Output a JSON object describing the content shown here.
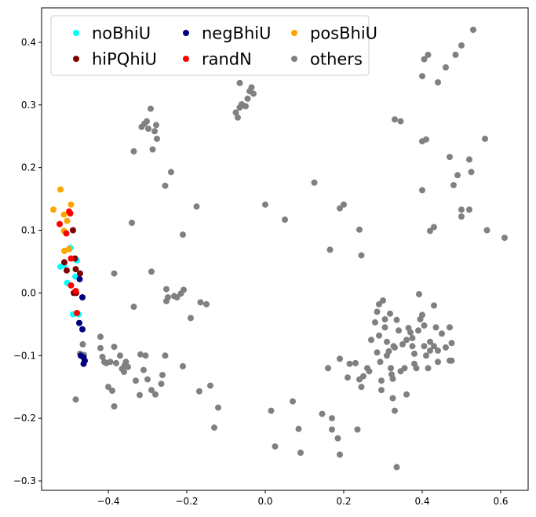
{
  "chart_data": {
    "type": "scatter",
    "title": "",
    "xlabel": "",
    "ylabel": "",
    "xlim": [
      -0.57,
      0.67
    ],
    "ylim": [
      -0.315,
      0.455
    ],
    "xticks": [
      -0.4,
      -0.2,
      0.0,
      0.2,
      0.4,
      0.6
    ],
    "yticks": [
      -0.3,
      -0.2,
      -0.1,
      0.0,
      0.1,
      0.2,
      0.3,
      0.4
    ],
    "xtick_labels": [
      "−0.4",
      "−0.2",
      "0.0",
      "0.2",
      "0.4",
      "0.6"
    ],
    "ytick_labels": [
      "−0.3",
      "−0.2",
      "−0.1",
      "0.0",
      "0.1",
      "0.2",
      "0.3",
      "0.4"
    ],
    "grid": false,
    "legend": {
      "position": "top-left",
      "columns": 3
    },
    "series": [
      {
        "name": "noBhiU",
        "color": "#00ffff",
        "points": [
          [
            -0.497,
            0.072
          ],
          [
            -0.513,
            0.045
          ],
          [
            -0.505,
            0.016
          ],
          [
            -0.484,
            0.026
          ],
          [
            -0.476,
            -0.034
          ],
          [
            -0.49,
            -0.034
          ],
          [
            -0.48,
            0.052
          ],
          [
            -0.522,
            0.042
          ]
        ]
      },
      {
        "name": "negBhiU",
        "color": "#000080",
        "points": [
          [
            -0.473,
            0.022
          ],
          [
            -0.466,
            -0.007
          ],
          [
            -0.474,
            -0.048
          ],
          [
            -0.466,
            -0.058
          ],
          [
            -0.47,
            -0.1
          ],
          [
            -0.463,
            -0.113
          ],
          [
            -0.46,
            -0.108
          ],
          [
            -0.463,
            -0.103
          ]
        ]
      },
      {
        "name": "posBhiU",
        "color": "#ffa500",
        "points": [
          [
            -0.522,
            0.165
          ],
          [
            -0.54,
            0.133
          ],
          [
            -0.513,
            0.125
          ],
          [
            -0.495,
            0.141
          ],
          [
            -0.505,
            0.115
          ],
          [
            -0.513,
            0.099
          ],
          [
            -0.512,
            0.067
          ],
          [
            -0.5,
            0.07
          ]
        ]
      },
      {
        "name": "hiPQhiU",
        "color": "#800000",
        "points": [
          [
            -0.49,
            0.1
          ],
          [
            -0.512,
            0.049
          ],
          [
            -0.485,
            0.055
          ],
          [
            -0.506,
            0.036
          ],
          [
            -0.483,
            0.038
          ],
          [
            -0.472,
            0.031
          ],
          [
            -0.482,
            0.0
          ],
          [
            -0.488,
            0.0
          ]
        ]
      },
      {
        "name": "randN",
        "color": "#ff0000",
        "points": [
          [
            -0.5,
            0.13
          ],
          [
            -0.497,
            0.127
          ],
          [
            -0.524,
            0.11
          ],
          [
            -0.507,
            0.095
          ],
          [
            -0.495,
            0.055
          ],
          [
            -0.495,
            0.012
          ],
          [
            -0.483,
            0.003
          ],
          [
            -0.48,
            -0.032
          ]
        ]
      },
      {
        "name": "others",
        "color": "#808080",
        "points": [
          [
            -0.483,
            -0.17
          ],
          [
            -0.472,
            -0.097
          ],
          [
            -0.462,
            -0.099
          ],
          [
            -0.465,
            -0.082
          ],
          [
            -0.42,
            -0.07
          ],
          [
            -0.42,
            -0.088
          ],
          [
            -0.415,
            -0.102
          ],
          [
            -0.41,
            -0.11
          ],
          [
            -0.405,
            -0.112
          ],
          [
            -0.395,
            -0.11
          ],
          [
            -0.385,
            -0.086
          ],
          [
            -0.38,
            -0.112
          ],
          [
            -0.37,
            -0.1
          ],
          [
            -0.365,
            -0.121
          ],
          [
            -0.36,
            -0.126
          ],
          [
            -0.358,
            -0.115
          ],
          [
            -0.355,
            -0.11
          ],
          [
            -0.35,
            -0.118
          ],
          [
            -0.33,
            -0.14
          ],
          [
            -0.318,
            -0.098
          ],
          [
            -0.32,
            -0.163
          ],
          [
            -0.31,
            -0.123
          ],
          [
            -0.305,
            -0.1
          ],
          [
            -0.3,
            -0.138
          ],
          [
            -0.29,
            -0.155
          ],
          [
            -0.28,
            -0.162
          ],
          [
            -0.265,
            -0.145
          ],
          [
            -0.262,
            -0.131
          ],
          [
            -0.255,
            -0.1
          ],
          [
            -0.21,
            -0.117
          ],
          [
            -0.4,
            -0.15
          ],
          [
            -0.39,
            -0.156
          ],
          [
            -0.385,
            -0.181
          ],
          [
            -0.385,
            0.031
          ],
          [
            -0.34,
            0.112
          ],
          [
            -0.335,
            -0.022
          ],
          [
            -0.335,
            0.226
          ],
          [
            -0.315,
            0.265
          ],
          [
            -0.308,
            0.27
          ],
          [
            -0.302,
            0.274
          ],
          [
            -0.298,
            0.262
          ],
          [
            -0.292,
            0.294
          ],
          [
            -0.29,
            0.034
          ],
          [
            -0.287,
            0.229
          ],
          [
            -0.282,
            0.258
          ],
          [
            -0.278,
            0.268
          ],
          [
            -0.276,
            0.246
          ],
          [
            -0.255,
            0.171
          ],
          [
            -0.252,
            -0.013
          ],
          [
            -0.248,
            -0.007
          ],
          [
            -0.252,
            0.006
          ],
          [
            -0.24,
            0.193
          ],
          [
            -0.232,
            -0.005
          ],
          [
            -0.225,
            -0.007
          ],
          [
            -0.215,
            -0.001
          ],
          [
            -0.208,
            0.005
          ],
          [
            -0.21,
            0.093
          ],
          [
            -0.19,
            -0.04
          ],
          [
            -0.175,
            0.138
          ],
          [
            -0.168,
            -0.157
          ],
          [
            -0.165,
            -0.015
          ],
          [
            -0.15,
            -0.018
          ],
          [
            -0.14,
            -0.148
          ],
          [
            -0.13,
            -0.215
          ],
          [
            -0.12,
            -0.183
          ],
          [
            -0.075,
            0.288
          ],
          [
            -0.065,
            0.296
          ],
          [
            -0.06,
            0.3
          ],
          [
            -0.06,
            0.301
          ],
          [
            -0.07,
            0.28
          ],
          [
            -0.065,
            0.335
          ],
          [
            -0.05,
            0.298
          ],
          [
            -0.045,
            0.31
          ],
          [
            -0.04,
            0.322
          ],
          [
            -0.035,
            0.328
          ],
          [
            -0.03,
            0.318
          ],
          [
            0.0,
            0.141
          ],
          [
            0.05,
            0.117
          ],
          [
            0.015,
            -0.188
          ],
          [
            0.025,
            -0.245
          ],
          [
            0.07,
            -0.173
          ],
          [
            0.085,
            -0.217
          ],
          [
            0.09,
            -0.255
          ],
          [
            0.125,
            0.176
          ],
          [
            0.145,
            -0.193
          ],
          [
            0.165,
            0.069
          ],
          [
            0.17,
            -0.2
          ],
          [
            0.17,
            -0.218
          ],
          [
            0.185,
            -0.232
          ],
          [
            0.19,
            0.135
          ],
          [
            0.2,
            0.141
          ],
          [
            0.19,
            -0.258
          ],
          [
            0.16,
            -0.12
          ],
          [
            0.19,
            -0.105
          ],
          [
            0.21,
            -0.135
          ],
          [
            0.215,
            -0.113
          ],
          [
            0.23,
            -0.112
          ],
          [
            0.235,
            -0.218
          ],
          [
            0.24,
            0.101
          ],
          [
            0.245,
            0.06
          ],
          [
            0.245,
            -0.15
          ],
          [
            0.24,
            -0.138
          ],
          [
            0.25,
            -0.133
          ],
          [
            0.26,
            -0.12
          ],
          [
            0.265,
            -0.125
          ],
          [
            0.27,
            -0.075
          ],
          [
            0.28,
            -0.047
          ],
          [
            0.285,
            -0.03
          ],
          [
            0.29,
            -0.018
          ],
          [
            0.29,
            -0.068
          ],
          [
            0.285,
            -0.095
          ],
          [
            0.293,
            -0.11
          ],
          [
            0.296,
            -0.14
          ],
          [
            0.296,
            -0.155
          ],
          [
            0.3,
            -0.012
          ],
          [
            0.305,
            -0.042
          ],
          [
            0.305,
            -0.055
          ],
          [
            0.31,
            -0.078
          ],
          [
            0.31,
            -0.1
          ],
          [
            0.315,
            -0.093
          ],
          [
            0.318,
            -0.033
          ],
          [
            0.32,
            -0.12
          ],
          [
            0.322,
            -0.13
          ],
          [
            0.325,
            -0.137
          ],
          [
            0.327,
            -0.085
          ],
          [
            0.33,
            -0.087
          ],
          [
            0.335,
            -0.043
          ],
          [
            0.34,
            -0.06
          ],
          [
            0.345,
            -0.125
          ],
          [
            0.35,
            -0.082
          ],
          [
            0.355,
            -0.12
          ],
          [
            0.36,
            -0.075
          ],
          [
            0.365,
            -0.056
          ],
          [
            0.37,
            -0.063
          ],
          [
            0.375,
            -0.072
          ],
          [
            0.375,
            -0.085
          ],
          [
            0.38,
            -0.097
          ],
          [
            0.38,
            -0.113
          ],
          [
            0.385,
            -0.12
          ],
          [
            0.39,
            -0.06
          ],
          [
            0.395,
            -0.042
          ],
          [
            0.392,
            -0.002
          ],
          [
            0.4,
            -0.035
          ],
          [
            0.405,
            -0.052
          ],
          [
            0.405,
            -0.085
          ],
          [
            0.41,
            -0.1
          ],
          [
            0.415,
            -0.12
          ],
          [
            0.42,
            -0.078
          ],
          [
            0.42,
            -0.092
          ],
          [
            0.43,
            -0.085
          ],
          [
            0.43,
            -0.02
          ],
          [
            0.435,
            -0.055
          ],
          [
            0.44,
            -0.092
          ],
          [
            0.44,
            -0.11
          ],
          [
            0.45,
            -0.065
          ],
          [
            0.46,
            -0.087
          ],
          [
            0.47,
            -0.108
          ],
          [
            0.475,
            -0.108
          ],
          [
            0.475,
            -0.08
          ],
          [
            0.47,
            -0.055
          ],
          [
            0.33,
            0.277
          ],
          [
            0.345,
            0.274
          ],
          [
            0.325,
            -0.168
          ],
          [
            0.33,
            -0.188
          ],
          [
            0.335,
            -0.278
          ],
          [
            0.36,
            -0.162
          ],
          [
            0.4,
            0.242
          ],
          [
            0.41,
            0.245
          ],
          [
            0.4,
            0.164
          ],
          [
            0.4,
            0.346
          ],
          [
            0.405,
            0.373
          ],
          [
            0.415,
            0.38
          ],
          [
            0.42,
            0.099
          ],
          [
            0.43,
            0.105
          ],
          [
            0.44,
            0.336
          ],
          [
            0.46,
            0.36
          ],
          [
            0.47,
            0.217
          ],
          [
            0.48,
            0.172
          ],
          [
            0.485,
            0.38
          ],
          [
            0.49,
            0.188
          ],
          [
            0.5,
            0.395
          ],
          [
            0.5,
            0.133
          ],
          [
            0.5,
            0.122
          ],
          [
            0.52,
            0.213
          ],
          [
            0.52,
            0.133
          ],
          [
            0.525,
            0.193
          ],
          [
            0.53,
            0.42
          ],
          [
            0.56,
            0.246
          ],
          [
            0.565,
            0.1
          ],
          [
            0.61,
            0.088
          ]
        ]
      }
    ]
  }
}
